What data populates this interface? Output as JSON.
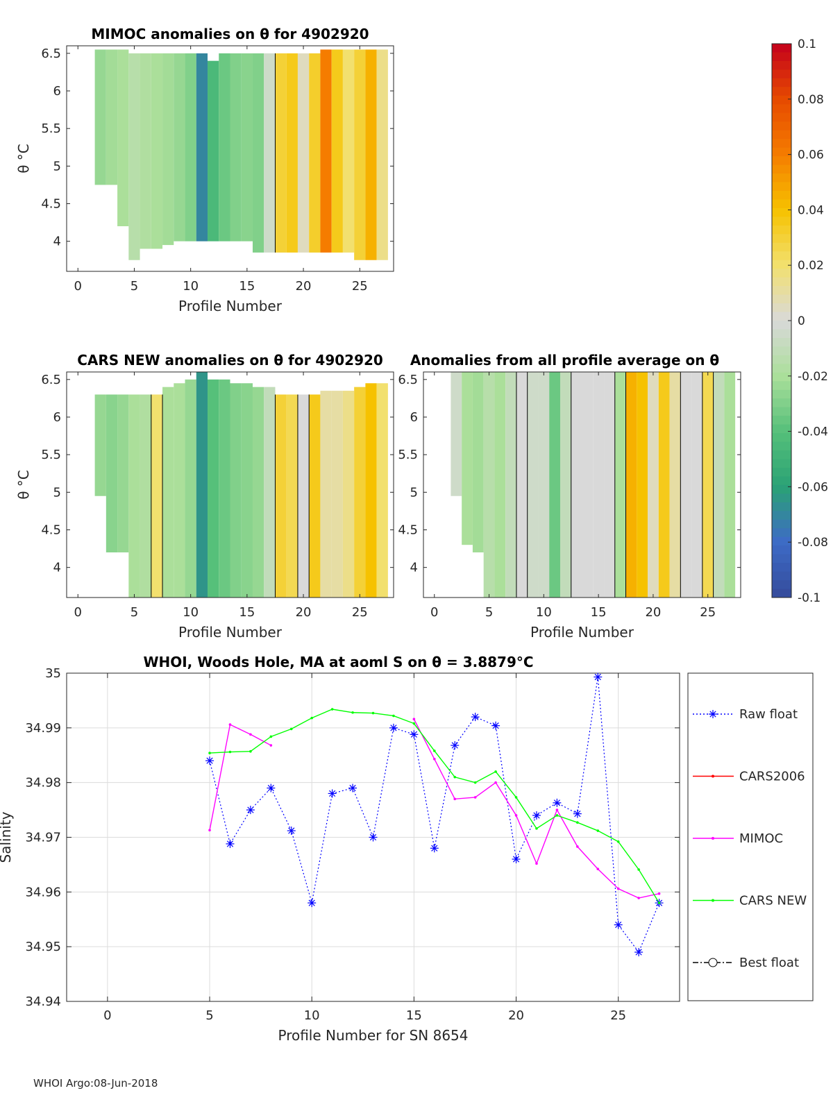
{
  "footer": "WHOI Argo:08-Jun-2018",
  "colors": {
    "raw_float": "#0000ff",
    "cars2006": "#ff0000",
    "mimoc": "#ff00ff",
    "cars_new": "#00ff00",
    "best_float": "#000000"
  },
  "chart_data": [
    {
      "type": "heatmap",
      "id": "mimoc",
      "title": "MIMOC anomalies on θ  for 4902920",
      "xlabel": "Profile Number",
      "ylabel": "θ °C",
      "xlim": [
        -1,
        28
      ],
      "ylim": [
        3.6,
        6.6
      ],
      "xticks": [
        0,
        5,
        10,
        15,
        20,
        25
      ],
      "yticks": [
        4,
        4.5,
        5,
        5.5,
        6,
        6.5
      ],
      "columns": [
        {
          "x": 2,
          "ylo": 4.75,
          "yhi": 6.55,
          "v": -0.025
        },
        {
          "x": 3,
          "ylo": 4.75,
          "yhi": 6.55,
          "v": -0.022
        },
        {
          "x": 4,
          "ylo": 4.2,
          "yhi": 6.55,
          "v": -0.02
        },
        {
          "x": 5,
          "ylo": 3.75,
          "yhi": 6.5,
          "v": -0.015
        },
        {
          "x": 6,
          "ylo": 3.9,
          "yhi": 6.5,
          "v": -0.018
        },
        {
          "x": 7,
          "ylo": 3.9,
          "yhi": 6.5,
          "v": -0.02
        },
        {
          "x": 8,
          "ylo": 3.95,
          "yhi": 6.5,
          "v": -0.022
        },
        {
          "x": 9,
          "ylo": 4.0,
          "yhi": 6.5,
          "v": -0.025
        },
        {
          "x": 10,
          "ylo": 4.0,
          "yhi": 6.5,
          "v": -0.03
        },
        {
          "x": 11,
          "ylo": 4.0,
          "yhi": 6.5,
          "v": -0.07
        },
        {
          "x": 12,
          "ylo": 4.0,
          "yhi": 6.4,
          "v": -0.045
        },
        {
          "x": 13,
          "ylo": 4.0,
          "yhi": 6.5,
          "v": -0.035
        },
        {
          "x": 14,
          "ylo": 4.0,
          "yhi": 6.5,
          "v": -0.03
        },
        {
          "x": 15,
          "ylo": 4.0,
          "yhi": 6.5,
          "v": -0.028
        },
        {
          "x": 16,
          "ylo": 3.85,
          "yhi": 6.5,
          "v": -0.03
        },
        {
          "x": 17,
          "ylo": 3.85,
          "yhi": 6.5,
          "v": -0.005
        },
        {
          "x": 18,
          "ylo": 3.85,
          "yhi": 6.5,
          "v": 0.03
        },
        {
          "x": 19,
          "ylo": 3.85,
          "yhi": 6.5,
          "v": 0.035
        },
        {
          "x": 20,
          "ylo": 3.85,
          "yhi": 6.5,
          "v": 0.005
        },
        {
          "x": 21,
          "ylo": 3.85,
          "yhi": 6.5,
          "v": 0.032
        },
        {
          "x": 22,
          "ylo": 3.85,
          "yhi": 6.55,
          "v": 0.06
        },
        {
          "x": 23,
          "ylo": 3.85,
          "yhi": 6.55,
          "v": 0.035
        },
        {
          "x": 24,
          "ylo": 3.85,
          "yhi": 6.55,
          "v": 0.02
        },
        {
          "x": 25,
          "ylo": 3.75,
          "yhi": 6.55,
          "v": 0.03
        },
        {
          "x": 26,
          "ylo": 3.75,
          "yhi": 6.55,
          "v": 0.045
        },
        {
          "x": 27,
          "ylo": 3.75,
          "yhi": 6.55,
          "v": 0.015
        }
      ]
    },
    {
      "type": "heatmap",
      "id": "cars_new",
      "title": "CARS NEW anomalies on θ for 4902920",
      "xlabel": "Profile Number",
      "ylabel": "θ °C",
      "xlim": [
        -1,
        28
      ],
      "ylim": [
        3.6,
        6.6
      ],
      "xticks": [
        0,
        5,
        10,
        15,
        20,
        25
      ],
      "yticks": [
        4,
        4.5,
        5,
        5.5,
        6,
        6.5
      ],
      "columns": [
        {
          "x": 2,
          "ylo": 4.95,
          "yhi": 6.3,
          "v": -0.025
        },
        {
          "x": 3,
          "ylo": 4.2,
          "yhi": 6.3,
          "v": -0.028
        },
        {
          "x": 4,
          "ylo": 4.2,
          "yhi": 6.3,
          "v": -0.025
        },
        {
          "x": 5,
          "ylo": 3.6,
          "yhi": 6.3,
          "v": -0.02
        },
        {
          "x": 6,
          "ylo": 3.6,
          "yhi": 6.3,
          "v": -0.018
        },
        {
          "x": 7,
          "ylo": 3.6,
          "yhi": 6.3,
          "v": 0.02
        },
        {
          "x": 8,
          "ylo": 3.6,
          "yhi": 6.4,
          "v": -0.02
        },
        {
          "x": 9,
          "ylo": 3.6,
          "yhi": 6.45,
          "v": -0.02
        },
        {
          "x": 10,
          "ylo": 3.6,
          "yhi": 6.5,
          "v": -0.025
        },
        {
          "x": 11,
          "ylo": 3.6,
          "yhi": 6.6,
          "v": -0.065
        },
        {
          "x": 12,
          "ylo": 3.6,
          "yhi": 6.5,
          "v": -0.04
        },
        {
          "x": 13,
          "ylo": 3.6,
          "yhi": 6.5,
          "v": -0.035
        },
        {
          "x": 14,
          "ylo": 3.6,
          "yhi": 6.45,
          "v": -0.03
        },
        {
          "x": 15,
          "ylo": 3.6,
          "yhi": 6.45,
          "v": -0.028
        },
        {
          "x": 16,
          "ylo": 3.6,
          "yhi": 6.4,
          "v": -0.025
        },
        {
          "x": 17,
          "ylo": 3.6,
          "yhi": 6.4,
          "v": -0.01
        },
        {
          "x": 18,
          "ylo": 3.6,
          "yhi": 6.3,
          "v": 0.03
        },
        {
          "x": 19,
          "ylo": 3.6,
          "yhi": 6.3,
          "v": 0.025
        },
        {
          "x": 20,
          "ylo": 3.6,
          "yhi": 6.3,
          "v": 0.0
        },
        {
          "x": 21,
          "ylo": 3.6,
          "yhi": 6.3,
          "v": 0.035
        },
        {
          "x": 22,
          "ylo": 3.6,
          "yhi": 6.35,
          "v": 0.01
        },
        {
          "x": 23,
          "ylo": 3.6,
          "yhi": 6.35,
          "v": 0.01
        },
        {
          "x": 24,
          "ylo": 3.6,
          "yhi": 6.35,
          "v": 0.015
        },
        {
          "x": 25,
          "ylo": 3.6,
          "yhi": 6.4,
          "v": 0.03
        },
        {
          "x": 26,
          "ylo": 3.6,
          "yhi": 6.45,
          "v": 0.04
        },
        {
          "x": 27,
          "ylo": 3.6,
          "yhi": 6.45,
          "v": 0.02
        }
      ]
    },
    {
      "type": "heatmap",
      "id": "all_avg",
      "title": "Anomalies from all profile average on θ",
      "xlabel": "Profile Number",
      "ylabel": "θ °C",
      "xlim": [
        -1,
        28
      ],
      "ylim": [
        3.6,
        6.6
      ],
      "xticks": [
        0,
        5,
        10,
        15,
        20,
        25
      ],
      "yticks": [
        4,
        4.5,
        5,
        5.5,
        6,
        6.5
      ],
      "columns": [
        {
          "x": 2,
          "ylo": 4.95,
          "yhi": 6.6,
          "v": -0.005
        },
        {
          "x": 3,
          "ylo": 4.3,
          "yhi": 6.6,
          "v": -0.02
        },
        {
          "x": 4,
          "ylo": 4.2,
          "yhi": 6.6,
          "v": -0.022
        },
        {
          "x": 5,
          "ylo": 3.6,
          "yhi": 6.6,
          "v": -0.015
        },
        {
          "x": 6,
          "ylo": 3.6,
          "yhi": 6.6,
          "v": -0.02
        },
        {
          "x": 7,
          "ylo": 3.6,
          "yhi": 6.6,
          "v": -0.01
        },
        {
          "x": 8,
          "ylo": 3.6,
          "yhi": 6.6,
          "v": 0.0
        },
        {
          "x": 9,
          "ylo": 3.6,
          "yhi": 6.6,
          "v": -0.005
        },
        {
          "x": 10,
          "ylo": 3.6,
          "yhi": 6.6,
          "v": -0.005
        },
        {
          "x": 11,
          "ylo": 3.6,
          "yhi": 6.6,
          "v": -0.035
        },
        {
          "x": 12,
          "ylo": 3.6,
          "yhi": 6.6,
          "v": -0.01
        },
        {
          "x": 13,
          "ylo": 3.6,
          "yhi": 6.6,
          "v": 0.0
        },
        {
          "x": 14,
          "ylo": 3.6,
          "yhi": 6.6,
          "v": 0.0
        },
        {
          "x": 15,
          "ylo": 3.6,
          "yhi": 6.6,
          "v": 0.0
        },
        {
          "x": 16,
          "ylo": 3.6,
          "yhi": 6.6,
          "v": 0.0
        },
        {
          "x": 17,
          "ylo": 3.6,
          "yhi": 6.6,
          "v": -0.02
        },
        {
          "x": 18,
          "ylo": 3.6,
          "yhi": 6.6,
          "v": 0.045
        },
        {
          "x": 19,
          "ylo": 3.6,
          "yhi": 6.6,
          "v": 0.04
        },
        {
          "x": 20,
          "ylo": 3.6,
          "yhi": 6.6,
          "v": 0.005
        },
        {
          "x": 21,
          "ylo": 3.6,
          "yhi": 6.6,
          "v": 0.035
        },
        {
          "x": 22,
          "ylo": 3.6,
          "yhi": 6.6,
          "v": 0.01
        },
        {
          "x": 23,
          "ylo": 3.6,
          "yhi": 6.6,
          "v": 0.0
        },
        {
          "x": 24,
          "ylo": 3.6,
          "yhi": 6.6,
          "v": 0.0
        },
        {
          "x": 25,
          "ylo": 3.6,
          "yhi": 6.6,
          "v": 0.025
        },
        {
          "x": 26,
          "ylo": 3.6,
          "yhi": 6.6,
          "v": -0.01
        },
        {
          "x": 27,
          "ylo": 3.6,
          "yhi": 6.6,
          "v": -0.02
        }
      ]
    },
    {
      "type": "colorbar",
      "range": [
        -0.1,
        0.1
      ],
      "ticks": [
        0.1,
        0.08,
        0.06,
        0.04,
        0.02,
        0,
        -0.02,
        -0.04,
        -0.06,
        -0.08,
        -0.1
      ],
      "tick_labels": [
        "0.1",
        "0.08",
        "0.06",
        "0.04",
        "0.02",
        "0",
        "-0.02",
        "-0.04",
        "-0.06",
        "-0.08",
        "-0.1"
      ],
      "stops": [
        [
          -0.1,
          "#354b9b"
        ],
        [
          -0.08,
          "#3d6bc6"
        ],
        [
          -0.06,
          "#2aa275"
        ],
        [
          -0.04,
          "#56c07a"
        ],
        [
          -0.02,
          "#abdf9a"
        ],
        [
          0,
          "#d9d9d9"
        ],
        [
          0.02,
          "#f2e06e"
        ],
        [
          0.04,
          "#f6c200"
        ],
        [
          0.06,
          "#f57c00"
        ],
        [
          0.08,
          "#e64a00"
        ],
        [
          0.1,
          "#c4001c"
        ]
      ]
    },
    {
      "type": "line",
      "id": "salinity",
      "title": "WHOI, Woods Hole, MA at aoml S on θ = 3.8879°C",
      "xlabel": "Profile Number for SN 8654",
      "ylabel": "Salinity",
      "xlim": [
        -2,
        28
      ],
      "ylim": [
        34.94,
        35
      ],
      "xticks": [
        0,
        5,
        10,
        15,
        20,
        25
      ],
      "yticks": [
        34.94,
        34.95,
        34.96,
        34.97,
        34.98,
        34.99,
        35
      ],
      "grid": true,
      "series": [
        {
          "name": "Raw float",
          "color": "#0000ff",
          "style": "dotted",
          "marker": "asterisk",
          "x": [
            5,
            6,
            7,
            8,
            9,
            10,
            11,
            12,
            13,
            14,
            15,
            16,
            17,
            18,
            19,
            20,
            21,
            22,
            23,
            24,
            25,
            26,
            27
          ],
          "y": [
            34.984,
            34.9688,
            34.975,
            34.979,
            34.9712,
            34.958,
            34.978,
            34.979,
            34.97,
            34.99,
            34.9888,
            34.968,
            34.9868,
            34.992,
            34.9904,
            34.966,
            34.974,
            34.9763,
            34.9743,
            34.9993,
            34.954,
            34.949,
            34.958
          ]
        },
        {
          "name": "CARS2006",
          "color": "#ff0000",
          "style": "solid",
          "marker": "dot",
          "x": [],
          "y": []
        },
        {
          "name": "MIMOC",
          "color": "#ff00ff",
          "style": "solid",
          "marker": "dot",
          "segments": [
            {
              "x": [
                5,
                6,
                7,
                8
              ],
              "y": [
                34.9713,
                34.9906,
                34.9888,
                34.9868
              ]
            },
            {
              "x": [
                15,
                16,
                17,
                18,
                19,
                20,
                21,
                22,
                23,
                24,
                25,
                26,
                27
              ],
              "y": [
                34.9916,
                34.9843,
                34.977,
                34.9773,
                34.98,
                34.974,
                34.9652,
                34.975,
                34.9683,
                34.9642,
                34.9606,
                34.9589,
                34.9597
              ]
            }
          ]
        },
        {
          "name": "CARS NEW",
          "color": "#00ff00",
          "style": "solid",
          "marker": "dot",
          "x": [
            5,
            6,
            7,
            8,
            9,
            10,
            11,
            12,
            13,
            14,
            15,
            16,
            17,
            18,
            19,
            20,
            21,
            22,
            23,
            24,
            25,
            26,
            27
          ],
          "y": [
            34.9854,
            34.9856,
            34.9857,
            34.9884,
            34.9898,
            34.9918,
            34.9934,
            34.9928,
            34.9927,
            34.9922,
            34.9908,
            34.9858,
            34.981,
            34.98,
            34.982,
            34.9773,
            34.9716,
            34.974,
            34.9727,
            34.9712,
            34.9692,
            34.9641,
            34.958
          ]
        },
        {
          "name": "Best float",
          "color": "#000000",
          "style": "dashdot",
          "marker": "circle",
          "x": [],
          "y": []
        }
      ],
      "legend": [
        "Raw float",
        "CARS2006",
        "MIMOC",
        "CARS NEW",
        "Best float"
      ],
      "legend_position": "outside-right"
    }
  ]
}
